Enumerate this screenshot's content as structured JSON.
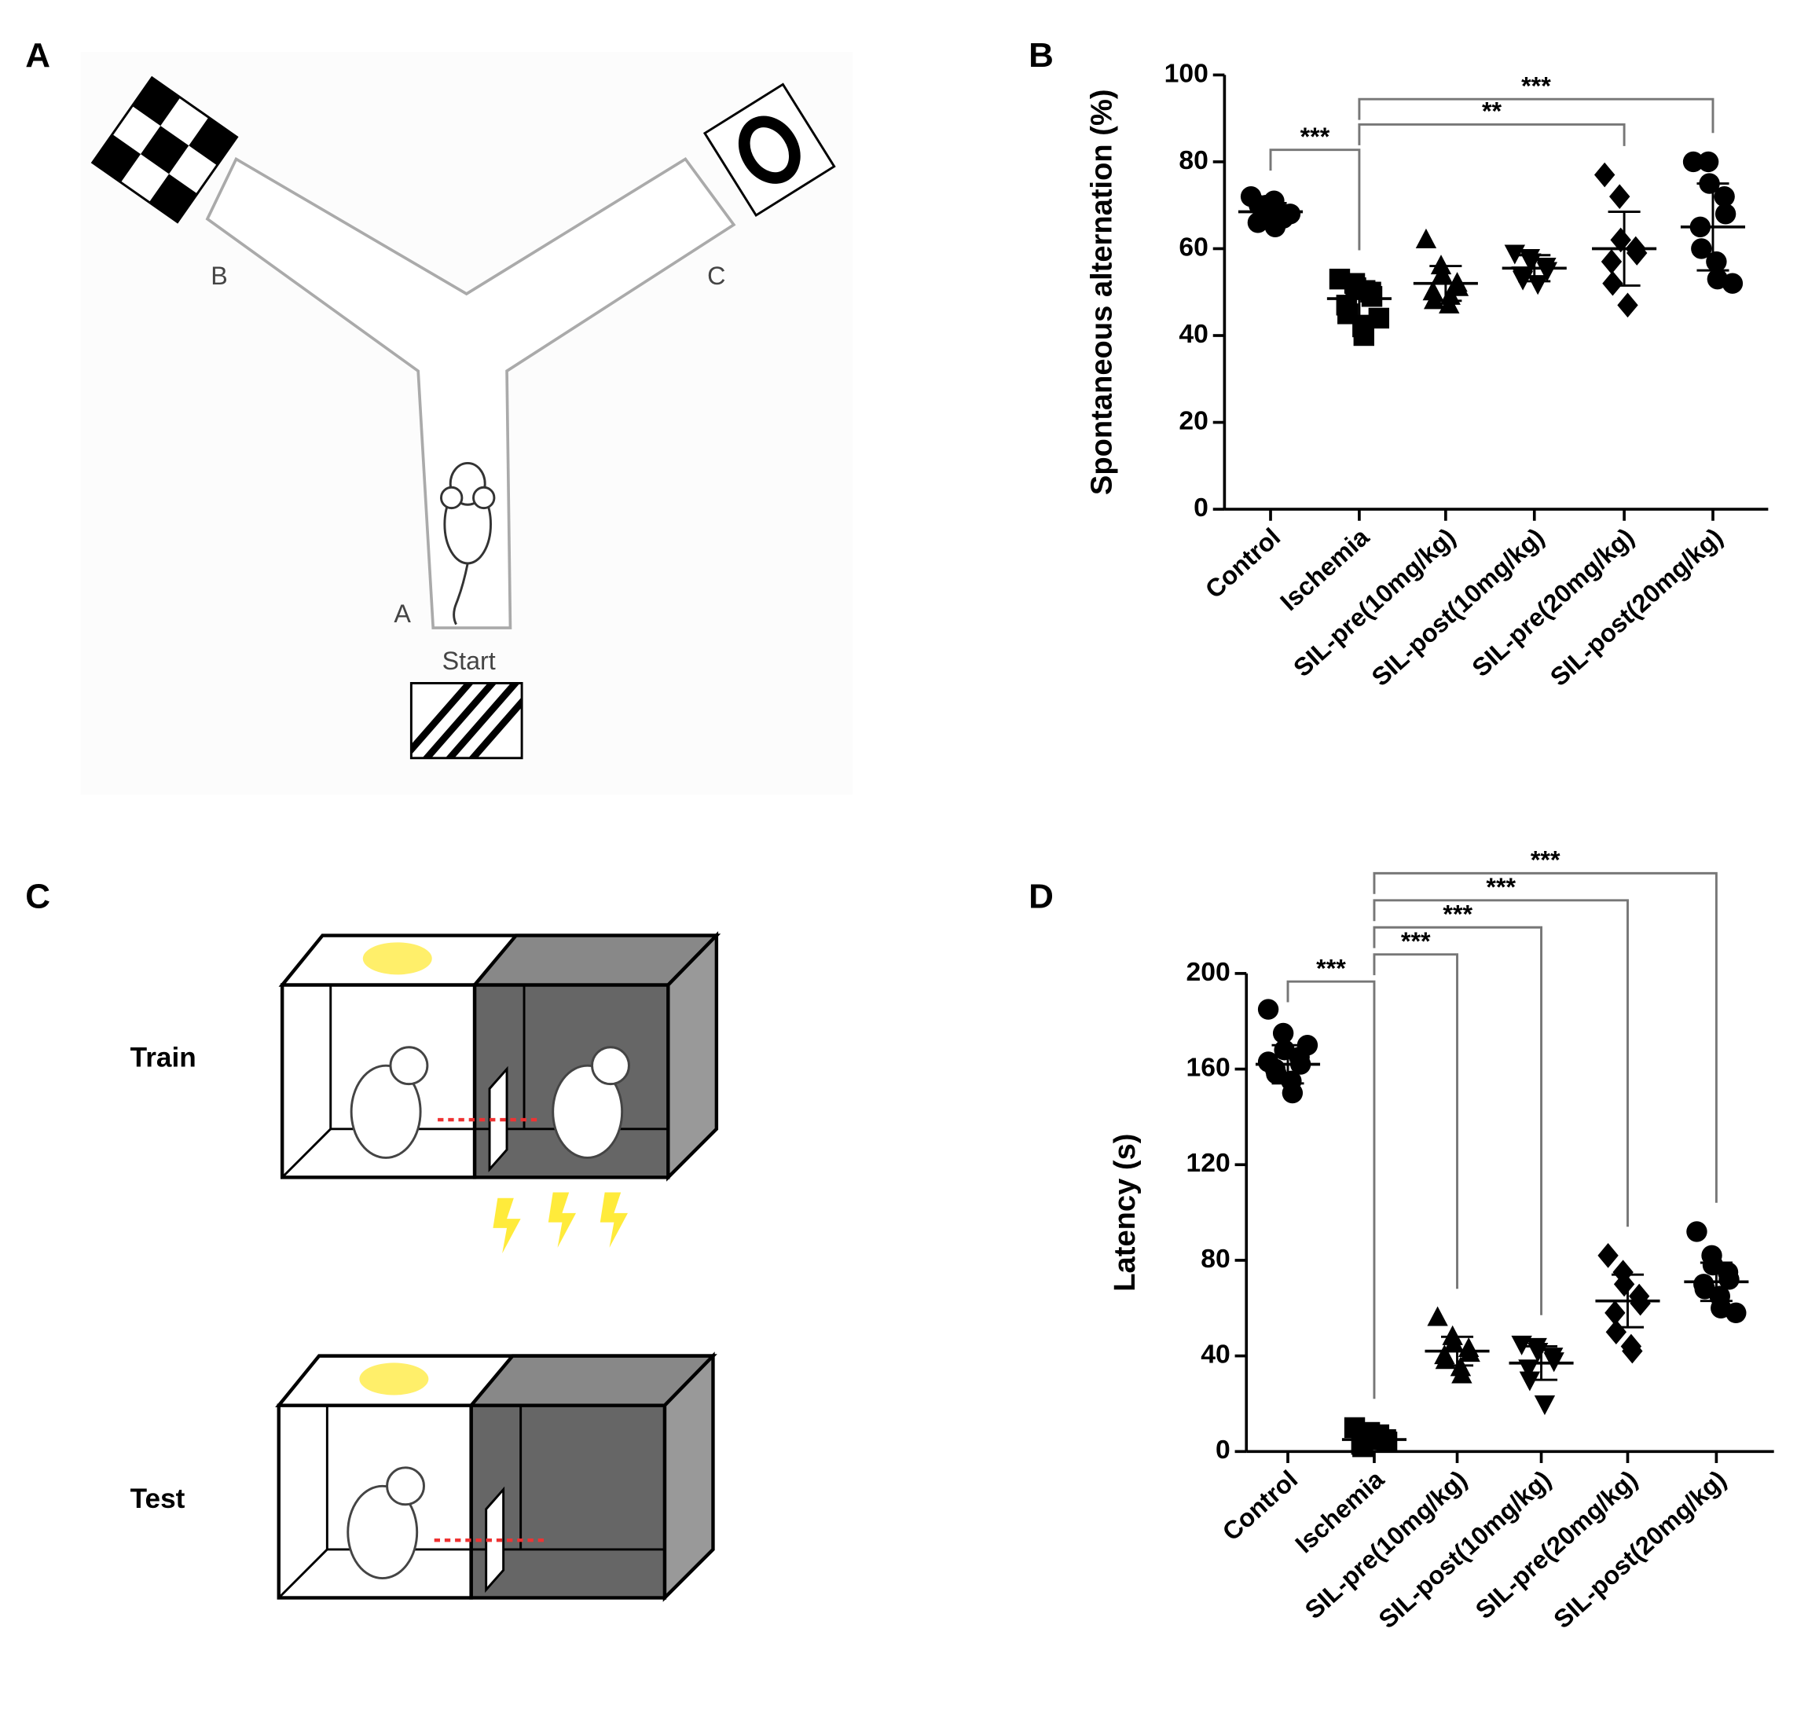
{
  "panel_labels": [
    "A",
    "B",
    "C",
    "D"
  ],
  "maze": {
    "arm_labels": [
      "B",
      "C",
      "A"
    ],
    "start": "Start"
  },
  "boxes": {
    "labels": [
      "Train",
      "Test"
    ]
  },
  "chart_data": [
    {
      "type": "dot",
      "ylabel": "Spontaneous alternation (%)",
      "categories": [
        "Control",
        "Ischemia",
        "SIL-pre(10mg/kg)",
        "SIL-post(10mg/kg)",
        "SIL-pre(20mg/kg)",
        "SIL-post(20mg/kg)"
      ],
      "markers": [
        "circle",
        "square",
        "triangle",
        "triangle-down",
        "diamond",
        "circle"
      ],
      "color": "#000000",
      "groups": [
        {
          "points": [
            72,
            70,
            69,
            68,
            67,
            66,
            70,
            71,
            65,
            68
          ],
          "mean": 68.5,
          "sd": 2
        },
        {
          "points": [
            53,
            52,
            51,
            50,
            49,
            47,
            45,
            42,
            40,
            44
          ],
          "mean": 48.5,
          "sd": 4
        },
        {
          "points": [
            62,
            56,
            54,
            52,
            51,
            50,
            48,
            47,
            49
          ],
          "mean": 52,
          "sd": 4
        },
        {
          "points": [
            59,
            58,
            57,
            56,
            55,
            54,
            53,
            52
          ],
          "mean": 55.5,
          "sd": 3
        },
        {
          "points": [
            77,
            72,
            62,
            60,
            59,
            57,
            52,
            47
          ],
          "mean": 60,
          "sd": 8.5
        },
        {
          "points": [
            80,
            80,
            75,
            72,
            68,
            65,
            60,
            57,
            53,
            52
          ],
          "mean": 65,
          "sd": 10
        }
      ],
      "brackets": [
        {
          "from": 0,
          "to": 1,
          "label": "***"
        },
        {
          "from": 1,
          "to": 4,
          "label": "**"
        },
        {
          "from": 1,
          "to": 5,
          "label": "***"
        }
      ],
      "ylim": [
        0,
        100
      ],
      "yticks": [
        0,
        20,
        40,
        60,
        80,
        100
      ]
    },
    {
      "type": "dot",
      "ylabel": "Latency (s)",
      "categories": [
        "Control",
        "Ischemia",
        "SIL-pre(10mg/kg)",
        "SIL-post(10mg/kg)",
        "SIL-pre(20mg/kg)",
        "SIL-post(20mg/kg)"
      ],
      "markers": [
        "circle",
        "square",
        "triangle",
        "triangle-down",
        "diamond",
        "circle"
      ],
      "color": "#000000",
      "groups": [
        {
          "points": [
            185,
            175,
            168,
            165,
            162,
            160,
            158,
            155,
            150,
            170,
            163
          ],
          "mean": 162,
          "sd": 8
        },
        {
          "points": [
            10,
            8,
            6,
            5,
            4,
            3,
            2,
            5,
            7
          ],
          "mean": 5,
          "sd": 2
        },
        {
          "points": [
            56,
            48,
            45,
            43,
            41,
            40,
            38,
            35,
            32
          ],
          "mean": 42,
          "sd": 6
        },
        {
          "points": [
            45,
            44,
            42,
            40,
            38,
            35,
            30,
            20
          ],
          "mean": 37,
          "sd": 7
        },
        {
          "points": [
            82,
            75,
            70,
            65,
            62,
            58,
            50,
            44,
            42
          ],
          "mean": 63,
          "sd": 11
        },
        {
          "points": [
            92,
            82,
            78,
            75,
            72,
            70,
            68,
            65,
            60,
            58
          ],
          "mean": 71,
          "sd": 8
        }
      ],
      "brackets": [
        {
          "from": 0,
          "to": 1,
          "label": "***"
        },
        {
          "from": 1,
          "to": 2,
          "label": "***"
        },
        {
          "from": 1,
          "to": 3,
          "label": "***"
        },
        {
          "from": 1,
          "to": 4,
          "label": "***"
        },
        {
          "from": 1,
          "to": 5,
          "label": "***"
        }
      ],
      "ylim": [
        0,
        200
      ],
      "yticks": [
        0,
        40,
        80,
        120,
        160,
        200
      ]
    }
  ]
}
